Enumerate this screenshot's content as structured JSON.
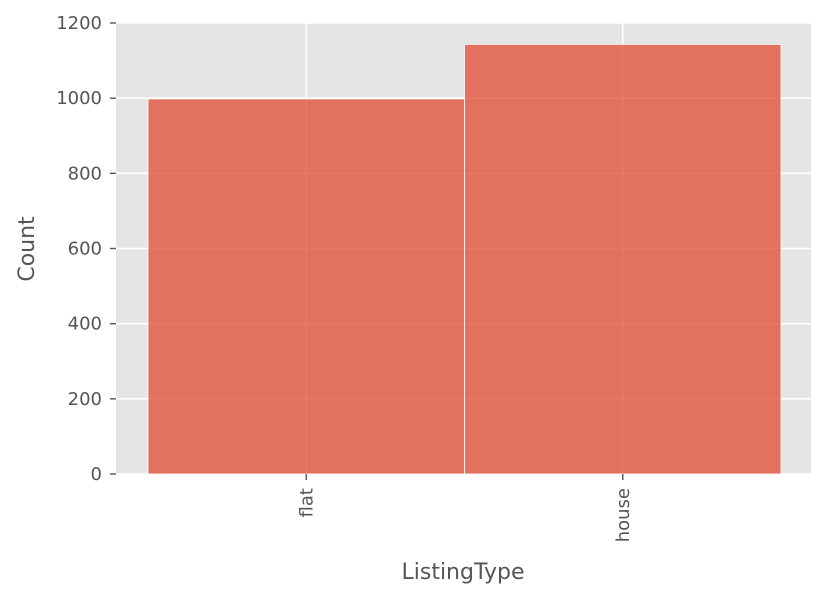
{
  "chart_data": {
    "type": "bar",
    "categories": [
      "flat",
      "house"
    ],
    "values": [
      998,
      1143
    ],
    "xlabel": "ListingType",
    "ylabel": "Count",
    "ylim": [
      0,
      1200
    ],
    "yticks": [
      0,
      200,
      400,
      600,
      800,
      1000,
      1200
    ],
    "grid": true,
    "legend": "none",
    "colors": {
      "bar": "#e24a33",
      "background": "#e5e5e5",
      "grid": "#ffffff",
      "text": "#555555"
    }
  }
}
